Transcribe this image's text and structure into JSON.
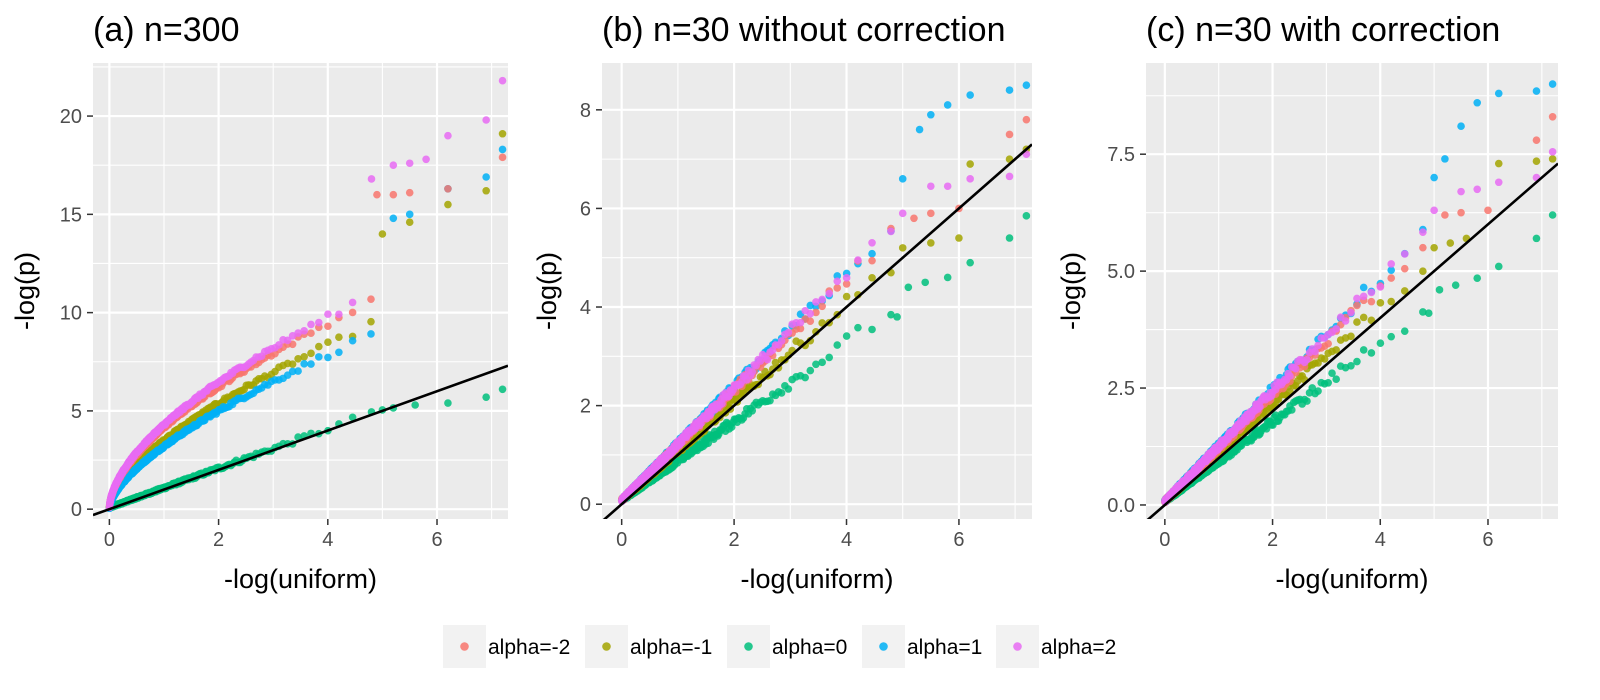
{
  "colors": {
    "alpha=-2": "#F8766D",
    "alpha=-1": "#A3A500",
    "alpha=0": "#00BF7D",
    "alpha=1": "#00B0F6",
    "alpha=2": "#E76BF3",
    "panel_background": "#EBEBEB",
    "grid": "#FFFFFF",
    "reference_line": "#000000"
  },
  "legend": {
    "entries": [
      "alpha=-2",
      "alpha=-1",
      "alpha=0",
      "alpha=1",
      "alpha=2"
    ],
    "position": "bottom"
  },
  "chart_data": [
    {
      "type": "scatter",
      "title": "(a) n=300",
      "xlabel": "-log(uniform)",
      "ylabel": "-log(p)",
      "xlim": [
        -0.3,
        7.3
      ],
      "ylim": [
        -0.5,
        22.7
      ],
      "xticks": [
        0,
        2,
        4,
        6
      ],
      "yticks": [
        0,
        5,
        10,
        15,
        20
      ],
      "xtick_labels": [
        "0",
        "2",
        "4",
        "6"
      ],
      "ytick_labels": [
        "0",
        "5",
        "10",
        "15",
        "20"
      ],
      "grid": true,
      "reference_line": {
        "slope": 1,
        "intercept": 0
      },
      "series": [
        {
          "name": "alpha=-2",
          "shape": "sqrt",
          "scale": 3.85,
          "exponent": 0.55,
          "linear": 0.3,
          "tail": [
            [
              4.9,
              16.0
            ],
            [
              5.2,
              16.0
            ],
            [
              5.5,
              16.1
            ],
            [
              6.2,
              16.3
            ],
            [
              7.2,
              17.9
            ]
          ]
        },
        {
          "name": "alpha=-1",
          "shape": "sqrt",
          "scale": 3.2,
          "exponent": 0.58,
          "linear": 0.3,
          "tail": [
            [
              5.0,
              14.0
            ],
            [
              5.5,
              14.6
            ],
            [
              6.2,
              15.5
            ],
            [
              6.9,
              16.2
            ],
            [
              7.2,
              19.1
            ]
          ]
        },
        {
          "name": "alpha=0",
          "shape": "linear",
          "scale": 1.0,
          "exponent": 1.0,
          "linear": 0,
          "tail": [
            [
              4.8,
              4.95
            ],
            [
              5.0,
              5.05
            ],
            [
              5.2,
              5.15
            ],
            [
              5.6,
              5.3
            ],
            [
              6.2,
              5.4
            ],
            [
              6.9,
              5.7
            ],
            [
              7.2,
              6.1
            ]
          ]
        },
        {
          "name": "alpha=1",
          "shape": "sqrt",
          "scale": 2.9,
          "exponent": 0.6,
          "linear": 0.3,
          "tail": [
            [
              5.2,
              14.8
            ],
            [
              5.5,
              15.0
            ],
            [
              6.2,
              16.3
            ],
            [
              6.9,
              16.9
            ],
            [
              7.2,
              18.3
            ]
          ]
        },
        {
          "name": "alpha=2",
          "shape": "sqrt",
          "scale": 4.0,
          "exponent": 0.55,
          "linear": 0.3,
          "tail": [
            [
              4.8,
              16.8
            ],
            [
              5.2,
              17.5
            ],
            [
              5.5,
              17.6
            ],
            [
              5.8,
              17.8
            ],
            [
              6.2,
              19.0
            ],
            [
              6.9,
              19.8
            ],
            [
              7.2,
              21.8
            ]
          ]
        }
      ]
    },
    {
      "type": "scatter",
      "title": "(b) n=30 without correction",
      "xlabel": "-log(uniform)",
      "ylabel": "-log(p)",
      "xlim": [
        -0.35,
        7.3
      ],
      "ylim": [
        -0.3,
        8.95
      ],
      "xticks": [
        0,
        2,
        4,
        6
      ],
      "yticks": [
        0,
        2,
        4,
        6,
        8
      ],
      "xtick_labels": [
        "0",
        "2",
        "4",
        "6"
      ],
      "ytick_labels": [
        "0",
        "2",
        "4",
        "6",
        "8"
      ],
      "grid": true,
      "reference_line": {
        "slope": 1,
        "intercept": 0
      },
      "series": [
        {
          "name": "alpha=-2",
          "shape": "linear",
          "scale": 1.12,
          "exponent": 1.0,
          "linear": 0,
          "tail": [
            [
              5.2,
              5.8
            ],
            [
              5.5,
              5.9
            ],
            [
              6.0,
              6.0
            ],
            [
              6.9,
              7.5
            ],
            [
              7.2,
              7.8
            ]
          ]
        },
        {
          "name": "alpha=-1",
          "shape": "linear",
          "scale": 1.0,
          "exponent": 1.0,
          "linear": 0,
          "tail": [
            [
              5.0,
              5.2
            ],
            [
              5.5,
              5.3
            ],
            [
              6.0,
              5.4
            ],
            [
              6.2,
              6.9
            ],
            [
              6.9,
              7.0
            ],
            [
              7.2,
              7.2
            ]
          ]
        },
        {
          "name": "alpha=0",
          "shape": "linear",
          "scale": 0.8,
          "exponent": 1.0,
          "linear": 0,
          "tail": [
            [
              4.9,
              3.8
            ],
            [
              5.1,
              4.4
            ],
            [
              5.4,
              4.5
            ],
            [
              5.8,
              4.6
            ],
            [
              6.2,
              4.9
            ],
            [
              6.9,
              5.4
            ],
            [
              7.2,
              5.85
            ]
          ]
        },
        {
          "name": "alpha=1",
          "shape": "linear",
          "scale": 1.15,
          "exponent": 1.0,
          "linear": 0,
          "tail": [
            [
              5.0,
              6.6
            ],
            [
              5.3,
              7.6
            ],
            [
              5.5,
              7.9
            ],
            [
              5.8,
              8.1
            ],
            [
              6.2,
              8.3
            ],
            [
              6.9,
              8.4
            ],
            [
              7.2,
              8.5
            ]
          ]
        },
        {
          "name": "alpha=2",
          "shape": "linear",
          "scale": 1.14,
          "exponent": 1.0,
          "linear": 0,
          "tail": [
            [
              5.0,
              5.9
            ],
            [
              5.5,
              6.45
            ],
            [
              5.8,
              6.45
            ],
            [
              6.2,
              6.6
            ],
            [
              6.9,
              6.65
            ],
            [
              7.2,
              7.1
            ]
          ]
        }
      ]
    },
    {
      "type": "scatter",
      "title": "(c) n=30 with correction",
      "xlabel": "-log(uniform)",
      "ylabel": "-log(p)",
      "xlim": [
        -0.35,
        7.3
      ],
      "ylim": [
        -0.3,
        9.45
      ],
      "xticks": [
        0,
        2,
        4,
        6
      ],
      "yticks": [
        0.0,
        2.5,
        5.0,
        7.5
      ],
      "xtick_labels": [
        "0",
        "2",
        "4",
        "6"
      ],
      "ytick_labels": [
        "0.0",
        "2.5",
        "5.0",
        "7.5"
      ],
      "grid": true,
      "reference_line": {
        "slope": 1,
        "intercept": 0
      },
      "series": [
        {
          "name": "alpha=-2",
          "shape": "linear",
          "scale": 1.14,
          "exponent": 1.0,
          "linear": 0,
          "tail": [
            [
              5.2,
              6.2
            ],
            [
              5.5,
              6.25
            ],
            [
              6.0,
              6.3
            ],
            [
              6.9,
              7.8
            ],
            [
              7.2,
              8.3
            ]
          ]
        },
        {
          "name": "alpha=-1",
          "shape": "linear",
          "scale": 1.04,
          "exponent": 1.0,
          "linear": 0,
          "tail": [
            [
              5.0,
              5.5
            ],
            [
              5.3,
              5.6
            ],
            [
              5.6,
              5.7
            ],
            [
              6.2,
              7.3
            ],
            [
              6.9,
              7.35
            ],
            [
              7.2,
              7.4
            ]
          ]
        },
        {
          "name": "alpha=0",
          "shape": "linear",
          "scale": 0.85,
          "exponent": 1.0,
          "linear": 0,
          "tail": [
            [
              4.9,
              4.1
            ],
            [
              5.1,
              4.6
            ],
            [
              5.4,
              4.7
            ],
            [
              5.8,
              4.85
            ],
            [
              6.2,
              5.1
            ],
            [
              6.9,
              5.7
            ],
            [
              7.2,
              6.2
            ]
          ]
        },
        {
          "name": "alpha=1",
          "shape": "linear",
          "scale": 1.2,
          "exponent": 1.0,
          "linear": 0,
          "tail": [
            [
              5.0,
              7.0
            ],
            [
              5.2,
              7.4
            ],
            [
              5.5,
              8.1
            ],
            [
              5.8,
              8.6
            ],
            [
              6.2,
              8.8
            ],
            [
              6.9,
              8.85
            ],
            [
              7.2,
              9.0
            ]
          ]
        },
        {
          "name": "alpha=2",
          "shape": "linear",
          "scale": 1.18,
          "exponent": 1.0,
          "linear": 0,
          "tail": [
            [
              5.0,
              6.3
            ],
            [
              5.5,
              6.7
            ],
            [
              5.8,
              6.75
            ],
            [
              6.2,
              6.9
            ],
            [
              6.9,
              7.0
            ],
            [
              7.2,
              7.55
            ]
          ]
        }
      ]
    }
  ]
}
